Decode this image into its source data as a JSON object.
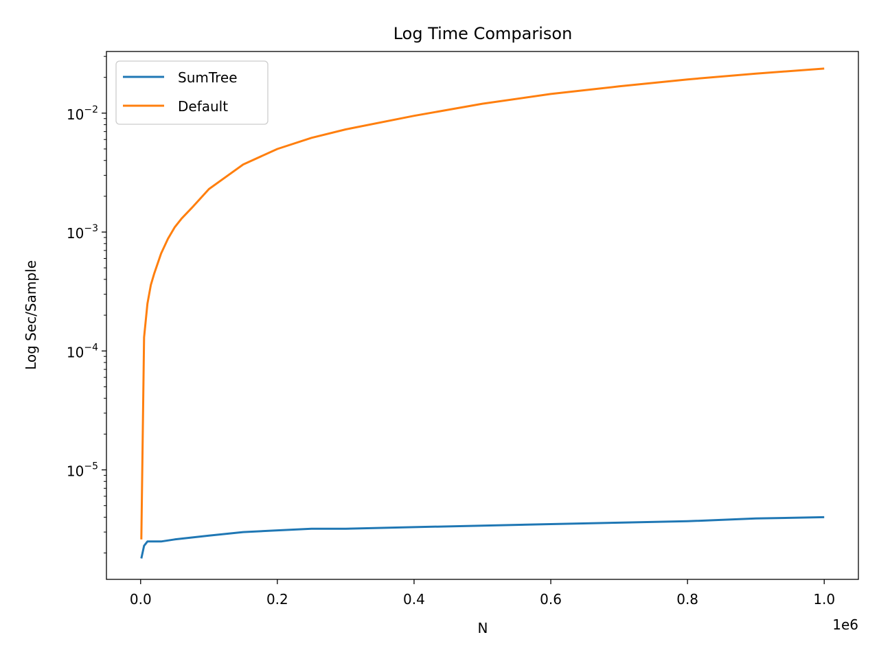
{
  "chart_data": {
    "type": "line",
    "title": "Log Time Comparison",
    "xlabel": "N",
    "ylabel": "Log Sec/Sample",
    "x_offset_label": "1e6",
    "x_scale": "linear",
    "y_scale": "log",
    "xlim": [
      -50000,
      1050000
    ],
    "ylim": [
      1.2e-06,
      0.033
    ],
    "x_ticks": [
      0,
      200000,
      400000,
      600000,
      800000,
      1000000
    ],
    "x_tick_labels": [
      "0.0",
      "0.2",
      "0.4",
      "0.6",
      "0.8",
      "1.0"
    ],
    "y_ticks": [
      {
        "value": 1e-05,
        "base": "10",
        "exp": "−5"
      },
      {
        "value": 0.0001,
        "base": "10",
        "exp": "−4"
      },
      {
        "value": 0.001,
        "base": "10",
        "exp": "−3"
      },
      {
        "value": 0.01,
        "base": "10",
        "exp": "−2"
      }
    ],
    "grid": false,
    "legend": "top-left",
    "series": [
      {
        "name": "SumTree",
        "color": "#1f77b4",
        "x": [
          1000,
          5000,
          10000,
          15000,
          20000,
          30000,
          50000,
          75000,
          100000,
          150000,
          200000,
          250000,
          300000,
          400000,
          500000,
          600000,
          700000,
          800000,
          900000,
          1000000
        ],
        "y": [
          1.8e-06,
          2.3e-06,
          2.5e-06,
          2.5e-06,
          2.5e-06,
          2.5e-06,
          2.6e-06,
          2.7e-06,
          2.8e-06,
          3e-06,
          3.1e-06,
          3.2e-06,
          3.2e-06,
          3.3e-06,
          3.4e-06,
          3.5e-06,
          3.6e-06,
          3.7e-06,
          3.9e-06,
          4e-06
        ]
      },
      {
        "name": "Default",
        "color": "#ff7f0e",
        "x": [
          1000,
          5000,
          10000,
          15000,
          20000,
          30000,
          40000,
          50000,
          60000,
          75000,
          100000,
          150000,
          200000,
          250000,
          300000,
          400000,
          500000,
          600000,
          700000,
          800000,
          900000,
          1000000
        ],
        "y": [
          2.6e-06,
          0.00013,
          0.00025,
          0.00036,
          0.00045,
          0.00066,
          0.00088,
          0.0011,
          0.0013,
          0.0016,
          0.0023,
          0.0037,
          0.005,
          0.0062,
          0.0073,
          0.0095,
          0.012,
          0.0145,
          0.0168,
          0.0192,
          0.0215,
          0.0237
        ]
      }
    ]
  }
}
